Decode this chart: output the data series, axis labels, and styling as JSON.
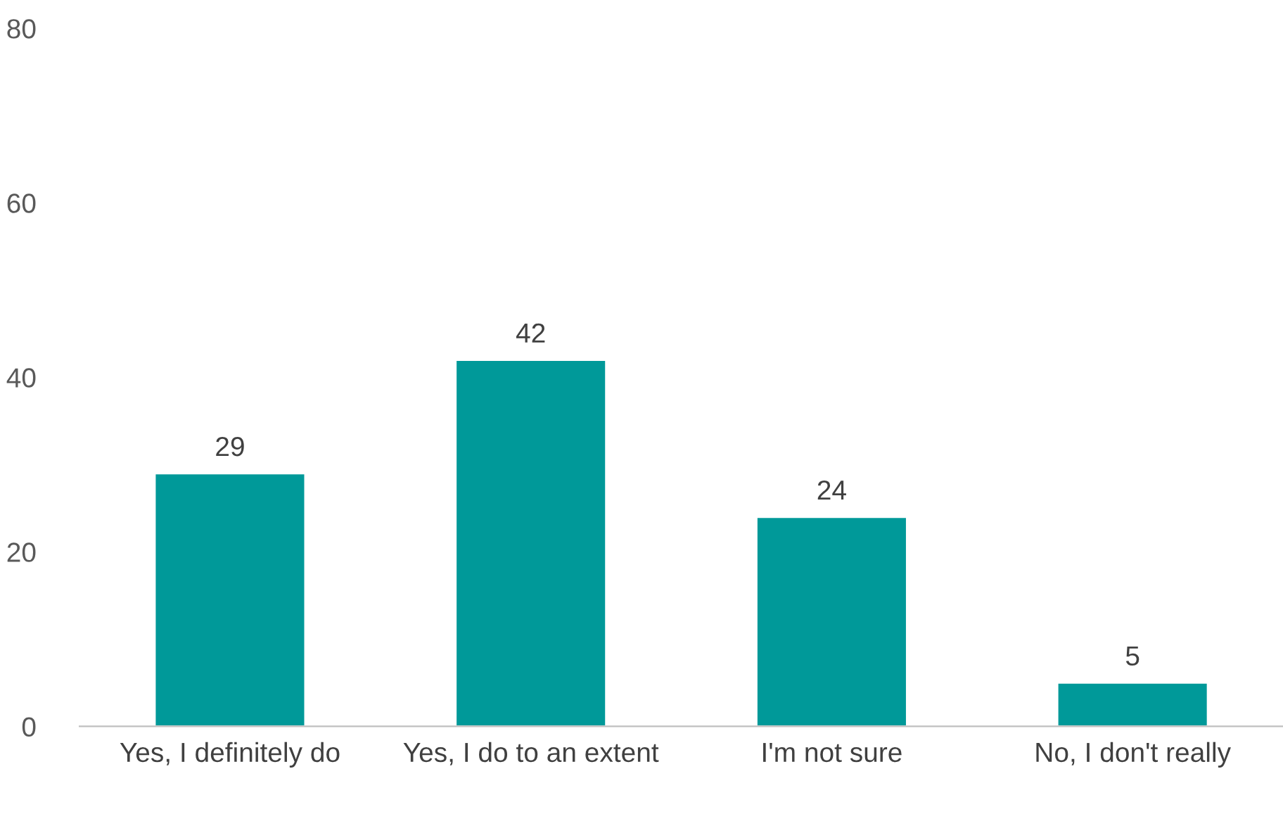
{
  "chart_data": {
    "type": "bar",
    "categories": [
      "Yes, I definitely do",
      "Yes, I do to an extent",
      "I'm not sure",
      "No, I don't really"
    ],
    "values": [
      29,
      42,
      24,
      5
    ],
    "color": "#009999",
    "ylim": [
      0,
      80
    ],
    "yticks": [
      0,
      20,
      40,
      60,
      80
    ],
    "data_labels": true,
    "grid": false,
    "legend": false
  }
}
